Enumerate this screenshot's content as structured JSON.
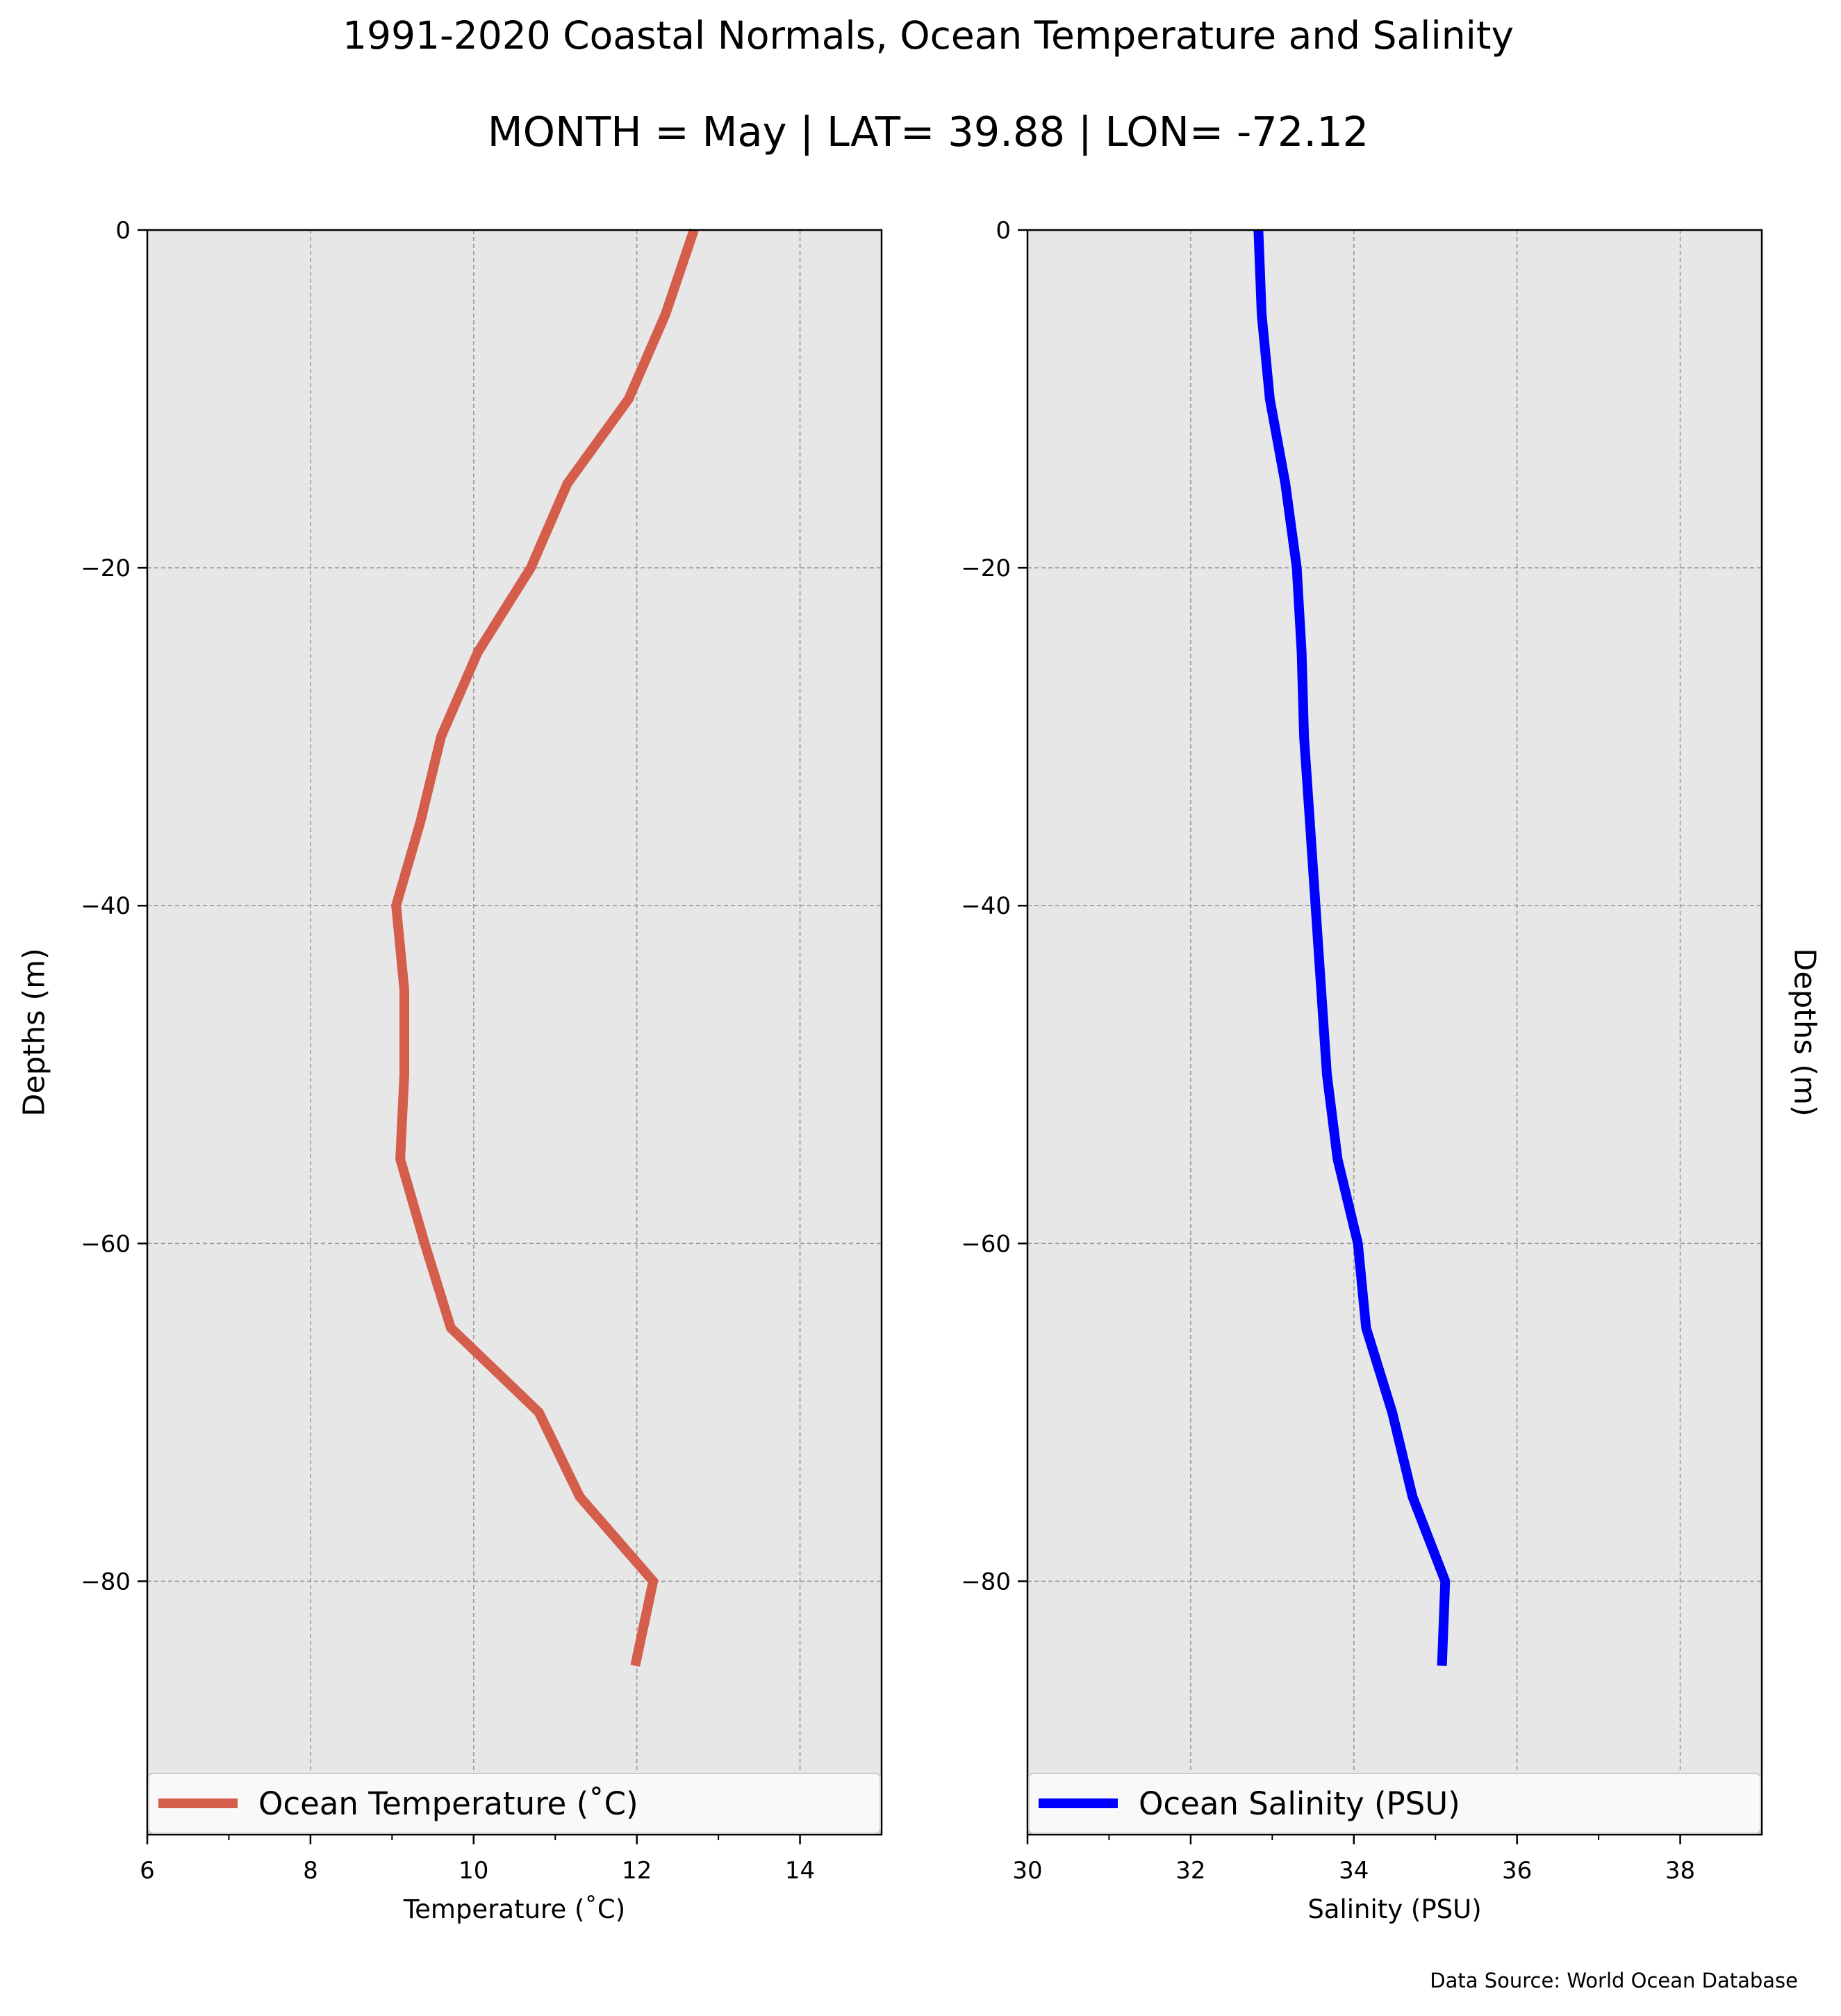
{
  "figure": {
    "title_line1": "1991-2020 Coastal Normals, Ocean Temperature and Salinity",
    "title_line2": "MONTH = May | LAT= 39.88 | LON= -72.12",
    "source_note": "Data Source: World Ocean Database",
    "background": "#ffffff",
    "axes_face": "#e7e7e7",
    "grid_color": "#9a9a9a"
  },
  "chart_data": [
    {
      "type": "line",
      "xlabel": "Temperature ($^\\circ$C)",
      "xlabel_display": "Temperature (˚C)",
      "ylabel": "Depths (m)",
      "xlim": [
        6,
        15
      ],
      "ylim": [
        -95,
        0
      ],
      "xticks": [
        6,
        8,
        10,
        12,
        14
      ],
      "yticks": [
        0,
        -20,
        -40,
        -60,
        -80
      ],
      "ytick_labels": [
        "0",
        "−20",
        "−40",
        "−60",
        "−80"
      ],
      "grid": true,
      "legend_location": "bottom",
      "series": [
        {
          "name": "Ocean Temperature (˚C)",
          "color": "#d45d4c",
          "x": [
            12.7,
            12.35,
            11.9,
            11.15,
            10.7,
            10.05,
            9.6,
            9.35,
            9.05,
            9.15,
            9.15,
            9.1,
            9.4,
            9.72,
            10.8,
            11.3,
            12.2,
            11.98
          ],
          "y": [
            0,
            -5,
            -10,
            -15,
            -20,
            -25,
            -30,
            -35,
            -40,
            -45,
            -50,
            -55,
            -60,
            -65,
            -70,
            -75,
            -80,
            -85
          ]
        }
      ]
    },
    {
      "type": "line",
      "xlabel": "Salinity (PSU)",
      "ylabel": "Depths (m)",
      "ylabel_side": "right",
      "xlim": [
        30,
        39
      ],
      "ylim": [
        -95,
        0
      ],
      "xticks": [
        30,
        32,
        34,
        36,
        38
      ],
      "yticks": [
        0,
        -20,
        -40,
        -60,
        -80
      ],
      "ytick_labels": [
        "0",
        "−20",
        "−40",
        "−60",
        "−80"
      ],
      "grid": true,
      "legend_location": "bottom",
      "series": [
        {
          "name": "Ocean Salinity (PSU)",
          "color": "#0000ff",
          "x": [
            32.83,
            32.87,
            32.97,
            33.16,
            33.3,
            33.36,
            33.39,
            33.46,
            33.53,
            33.6,
            33.67,
            33.8,
            34.05,
            34.15,
            34.47,
            34.72,
            35.12,
            35.08
          ],
          "y": [
            0,
            -5,
            -10,
            -15,
            -20,
            -25,
            -30,
            -35,
            -40,
            -45,
            -50,
            -55,
            -60,
            -65,
            -70,
            -75,
            -80,
            -85
          ]
        }
      ]
    }
  ]
}
